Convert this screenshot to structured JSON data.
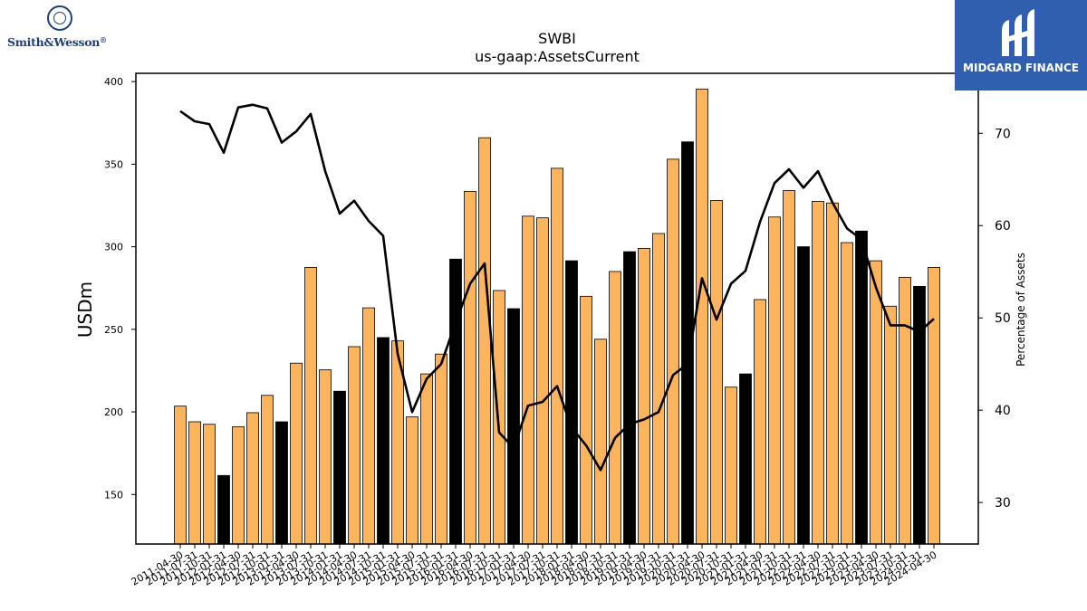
{
  "logos": {
    "left_text": "Smith&Wesson",
    "left_mark": "®",
    "right_text": "MIDGARD FINANCE"
  },
  "chart_data": {
    "type": "bar",
    "title": "SWBI",
    "subtitle": "us-gaap:AssetsCurrent",
    "ylabel": "USDm",
    "y2label": "Percentage of Assets",
    "ylim": [
      120,
      405
    ],
    "y2lim": [
      25.5,
      76.5
    ],
    "yticks": [
      150,
      200,
      250,
      300,
      350,
      400
    ],
    "y2ticks": [
      30,
      40,
      50,
      60,
      70
    ],
    "colors": {
      "bar": "#fdb462",
      "bar_highlight": "#000000",
      "line": "#000000"
    },
    "categories": [
      "2011-04-30",
      "2011-07-31",
      "2011-10-31",
      "2012-01-31",
      "2012-04-30",
      "2012-07-31",
      "2012-10-31",
      "2013-01-31",
      "2013-04-30",
      "2013-07-31",
      "2013-10-31",
      "2014-01-31",
      "2014-04-30",
      "2014-07-31",
      "2014-10-31",
      "2015-01-31",
      "2015-04-30",
      "2015-07-31",
      "2015-10-31",
      "2016-01-31",
      "2016-04-30",
      "2016-07-31",
      "2016-10-31",
      "2017-01-31",
      "2017-04-30",
      "2017-07-31",
      "2017-10-31",
      "2018-01-31",
      "2018-04-30",
      "2018-07-31",
      "2018-10-31",
      "2019-01-31",
      "2019-04-30",
      "2019-07-31",
      "2019-10-31",
      "2020-01-31",
      "2020-04-30",
      "2020-07-31",
      "2020-10-31",
      "2021-01-31",
      "2021-04-30",
      "2021-07-31",
      "2021-10-31",
      "2022-01-31",
      "2022-04-30",
      "2022-07-31",
      "2022-10-31",
      "2023-01-31",
      "2023-04-30",
      "2023-07-31",
      "2023-10-31",
      "2024-01-31",
      "2024-04-30"
    ],
    "tick_labels": [
      "2011-04-30",
      "2011-07-31",
      "2011-10-31",
      "2012-01-31",
      "2012-04-30",
      "2012-07-31",
      "2012-10-31",
      "2013-01-31",
      "2013-04-30",
      "2013-07-31",
      "2013-10-31",
      "2014-01-31",
      "2014-04-30",
      "2014-07-31",
      "2014-10-31",
      "2015-01-31",
      "2015-04-30",
      "2015-07-31",
      "2015-10-31",
      "2016-01-31",
      "2016-04-30",
      "2016-07-31",
      "2016-10-31",
      "2017-01-31",
      "2017-04-30",
      "2017-07-31",
      "2017-10-31",
      "2018-01-31",
      "2018-04-30",
      "2018-07-31",
      "2018-10-31",
      "2019-01-31",
      "2019-04-30",
      "2019-07-31",
      "2019-10-31",
      "2020-01-31",
      "2020-04-30",
      "2020-07-31",
      "2020-10-31",
      "2021-01-31",
      "2021-04-30",
      "2021-07-31",
      "2021-10-31",
      "2022-01-31",
      "2022-04-30",
      "2022-07-31",
      "2022-10-31",
      "2023-01-31",
      "2023-04-30",
      "2023-07-31",
      "2023-10-31",
      "2024-01-31",
      "2024-04-30"
    ],
    "values": [
      203.5,
      194,
      192.5,
      161.5,
      191,
      199.5,
      210,
      194,
      229.5,
      287.5,
      225.5,
      212.5,
      239.5,
      263,
      245,
      243,
      197,
      223,
      235,
      292.5,
      333.5,
      366,
      273.5,
      262.5,
      318.5,
      317.5,
      347.5,
      291.5,
      270,
      244,
      285,
      297,
      299,
      308,
      353,
      363.5,
      395.5,
      328,
      215,
      223,
      268,
      318,
      334,
      300,
      327.5,
      326.5,
      302.5,
      309.5,
      291.5,
      264,
      281.5,
      276,
      287.5
    ],
    "highlight": [
      false,
      false,
      false,
      true,
      false,
      false,
      false,
      true,
      false,
      false,
      false,
      true,
      false,
      false,
      true,
      false,
      false,
      false,
      false,
      true,
      false,
      false,
      false,
      true,
      false,
      false,
      false,
      true,
      false,
      false,
      false,
      true,
      false,
      false,
      false,
      true,
      false,
      false,
      false,
      true,
      false,
      false,
      false,
      true,
      false,
      false,
      false,
      true,
      false,
      false,
      false,
      true,
      false
    ],
    "line_series": {
      "axis": "right",
      "values": [
        72.4,
        71.3,
        71,
        67.9,
        72.8,
        73.1,
        72.7,
        69,
        70.2,
        72.1,
        65.9,
        61.3,
        62.7,
        60.5,
        58.9,
        46.1,
        39.8,
        43.4,
        45,
        49.5,
        53.7,
        55.9,
        37.6,
        35.9,
        40.5,
        40.9,
        42.6,
        38.1,
        36.2,
        33.5,
        37,
        38.5,
        39,
        39.8,
        43.8,
        45,
        54.3,
        49.8,
        53.7,
        55.1,
        60.4,
        64.6,
        66.1,
        64.1,
        65.9,
        62.5,
        59.7,
        58.5,
        53.3,
        49.2,
        49.2,
        48.5,
        49.9
      ]
    }
  }
}
